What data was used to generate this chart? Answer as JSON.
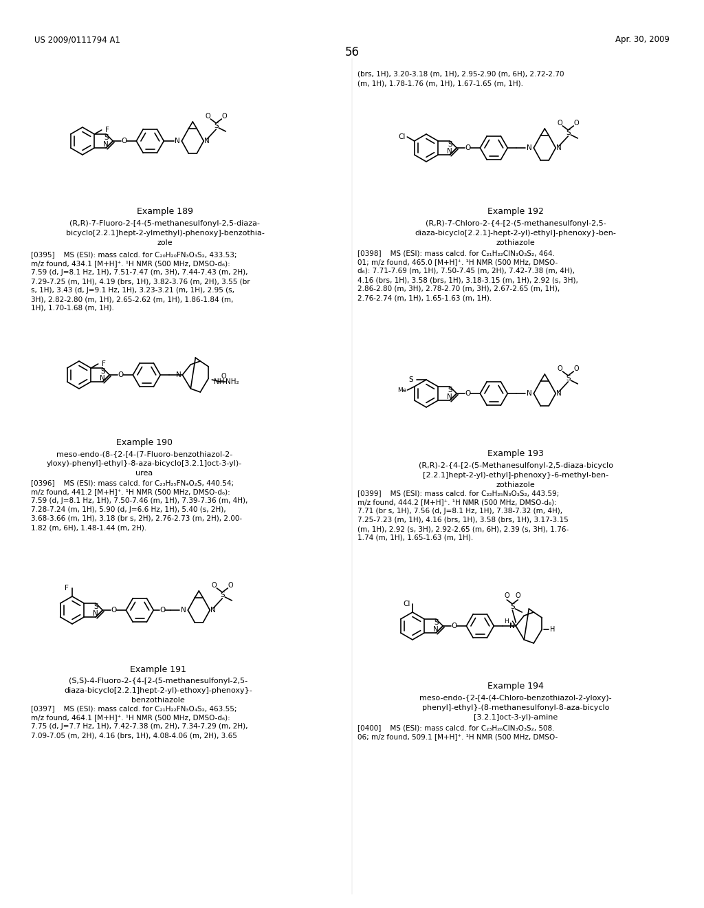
{
  "background": "#ffffff",
  "header_left": "US 2009/0111794 A1",
  "header_right": "Apr. 30, 2009",
  "page_num": "56",
  "right_col_top": "(brs, 1H), 3.20-3.18 (m, 1H), 2.95-2.90 (m, 6H), 2.72-2.70\n(m, 1H), 1.78-1.76 (m, 1H), 1.67-1.65 (m, 1H).",
  "ex189_title": "Example 189",
  "ex189_name": "(R,R)-7-Fluoro-2-[4-(5-methanesulfonyl-2,5-diaza-\nbicyclo[2.2.1]hept-2-ylmethyl)-phenoxy]-benzothia-\nzole",
  "ex189_para": "[0395]",
  "ex189_body": "MS (ESI): mass calcd. for C₂₀H₂₀FN₃O₃S₂, 433.53;\nm/z found, 434.1 [M+H]⁺. ¹H NMR (500 MHz, DMSO-d₆):\n7.59 (d, J=8.1 Hz, 1H), 7.51-7.47 (m, 3H), 7.44-7.43 (m, 2H),\n7.29-7.25 (m, 1H), 4.19 (brs, 1H), 3.82-3.76 (m, 2H), 3.55 (br\ns, 1H), 3.43 (d, J=9.1 Hz, 1H), 3.23-3.21 (m, 1H), 2.95 (s,\n3H), 2.82-2.80 (m, 1H), 2.65-2.62 (m, 1H), 1.86-1.84 (m,\n1H), 1.70-1.68 (m, 1H).",
  "ex190_title": "Example 190",
  "ex190_name": "meso-endo-(8-{2-[4-(7-Fluoro-benzothiazol-2-\nyloxy)-phenyl]-ethyl}-8-aza-bicyclo[3.2.1]oct-3-yl)-\nurea",
  "ex190_para": "[0396]",
  "ex190_body": "MS (ESI): mass calcd. for C₂₃H₂₅FN₄O₂S, 440.54;\nm/z found, 441.2 [M+H]⁺. ¹H NMR (500 MHz, DMSO-d₆):\n7.59 (d, J=8.1 Hz, 1H), 7.50-7.46 (m, 1H), 7.39-7.36 (m, 4H),\n7.28-7.24 (m, 1H), 5.90 (d, J=6.6 Hz, 1H), 5.40 (s, 2H),\n3.68-3.66 (m, 1H), 3.18 (br s, 2H), 2.76-2.73 (m, 2H), 2.00-\n1.82 (m, 6H), 1.48-1.44 (m, 2H).",
  "ex191_title": "Example 191",
  "ex191_name": "(S,S)-4-Fluoro-2-{4-[2-(5-methanesulfonyl-2,5-\ndiaza-bicyclo[2.2.1]hept-2-yl)-ethoxy]-phenoxy}-\nbenzothiazole",
  "ex191_para": "[0397]",
  "ex191_body": "MS (ESI): mass calcd. for C₂₁H₂₂FN₃O₄S₂, 463.55;\nm/z found, 464.1 [M+H]⁺. ¹H NMR (500 MHz, DMSO-d₆):\n7.75 (d, J=7.7 Hz, 1H), 7.42-7.38 (m, 2H), 7.34-7.29 (m, 2H),\n7.09-7.05 (m, 2H), 4.16 (brs, 1H), 4.08-4.06 (m, 2H), 3.65",
  "ex192_title": "Example 192",
  "ex192_name": "(R,R)-7-Chloro-2-{4-[2-(5-methanesulfonyl-2,5-\ndiaza-bicyclo[2.2.1]-hept-2-yl)-ethyl]-phenoxy}-ben-\nzothiazole",
  "ex192_para": "[0398]",
  "ex192_body": "MS (ESI): mass calcd. for C₂₁H₂₂ClN₃O₃S₂, 464.\n01; m/z found, 465.0 [M+H]⁺. ¹H NMR (500 MHz, DMSO-\nd₆): 7.71-7.69 (m, 1H), 7.50-7.45 (m, 2H), 7.42-7.38 (m, 4H),\n4.16 (brs, 1H), 3.58 (brs, 1H), 3.18-3.15 (m, 1H), 2.92 (s, 3H),\n2.86-2.80 (m, 3H), 2.78-2.70 (m, 3H), 2.67-2.65 (m, 1H),\n2.76-2.74 (m, 1H), 1.65-1.63 (m, 1H).",
  "ex193_title": "Example 193",
  "ex193_name": "(R,R)-2-{4-[2-(5-Methanesulfonyl-2,5-diaza-bicyclo\n[2.2.1]hept-2-yl)-ethyl]-phenoxy}-6-methyl-ben-\nzothiazole",
  "ex193_para": "[0399]",
  "ex193_body": "MS (ESI): mass calcd. for C₂₂H₂₅N₃O₃S₂, 443.59;\nm/z found, 444.2 [M+H]⁺. ¹H NMR (500 MHz, DMSO-d₆):\n7.71 (br s, 1H), 7.56 (d, J=8.1 Hz, 1H), 7.38-7.32 (m, 4H),\n7.25-7.23 (m, 1H), 4.16 (brs, 1H), 3.58 (brs, 1H), 3.17-3.15\n(m, 1H), 2.92 (s, 3H), 2.92-2.65 (m, 6H), 2.39 (s, 3H), 1.76-\n1.74 (m, 1H), 1.65-1.63 (m, 1H).",
  "ex194_title": "Example 194",
  "ex194_name": "meso-endo-{2-[4-(4-Chloro-benzothiazol-2-yloxy)-\nphenyl]-ethyl}-(8-methanesulfonyl-8-aza-bicyclo\n[3.2.1]oct-3-yl)-amine",
  "ex194_para": "[0400]",
  "ex194_body": "MS (ESI): mass calcd. for C₂₃H₂₆ClN₃O₃S₂, 508.\n06; m/z found, 509.1 [M+H]⁺. ¹H NMR (500 MHz, DMSO-"
}
